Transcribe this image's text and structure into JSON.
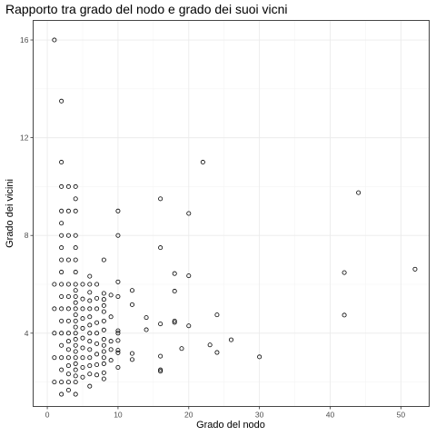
{
  "chart_data": {
    "type": "scatter",
    "title": "Rapporto tra grado del nodo e grado dei suoi vicni",
    "xlabel": "Grado del nodo",
    "ylabel": "Grado dei vicini",
    "xlim": [
      -2,
      54
    ],
    "ylim": [
      1.0,
      16.8
    ],
    "x_ticks": [
      0,
      10,
      20,
      30,
      40,
      50
    ],
    "y_ticks": [
      4,
      8,
      12,
      16
    ],
    "grid": true,
    "marker": "open-circle",
    "points": [
      {
        "x": 1,
        "y": 16
      },
      {
        "x": 2,
        "y": 13.5
      },
      {
        "x": 2,
        "y": 11
      },
      {
        "x": 2,
        "y": 10
      },
      {
        "x": 2,
        "y": 9
      },
      {
        "x": 2,
        "y": 8.5
      },
      {
        "x": 2,
        "y": 8
      },
      {
        "x": 2,
        "y": 7.5
      },
      {
        "x": 2,
        "y": 7
      },
      {
        "x": 2,
        "y": 6.5
      },
      {
        "x": 2,
        "y": 6
      },
      {
        "x": 2,
        "y": 5.5
      },
      {
        "x": 2,
        "y": 5
      },
      {
        "x": 2,
        "y": 4.5
      },
      {
        "x": 2,
        "y": 4
      },
      {
        "x": 2,
        "y": 3.5
      },
      {
        "x": 2,
        "y": 3
      },
      {
        "x": 2,
        "y": 2.5
      },
      {
        "x": 2,
        "y": 2
      },
      {
        "x": 2,
        "y": 1.5
      },
      {
        "x": 1,
        "y": 6
      },
      {
        "x": 1,
        "y": 5
      },
      {
        "x": 1,
        "y": 4
      },
      {
        "x": 1,
        "y": 3
      },
      {
        "x": 1,
        "y": 2
      },
      {
        "x": 3,
        "y": 10
      },
      {
        "x": 3,
        "y": 9
      },
      {
        "x": 3,
        "y": 8
      },
      {
        "x": 3,
        "y": 7
      },
      {
        "x": 3,
        "y": 6
      },
      {
        "x": 3,
        "y": 5.5
      },
      {
        "x": 3,
        "y": 5
      },
      {
        "x": 3,
        "y": 4.5
      },
      {
        "x": 3,
        "y": 4
      },
      {
        "x": 3,
        "y": 3.67
      },
      {
        "x": 3,
        "y": 3.33
      },
      {
        "x": 3,
        "y": 3
      },
      {
        "x": 3,
        "y": 2.67
      },
      {
        "x": 3,
        "y": 2.33
      },
      {
        "x": 3,
        "y": 2
      },
      {
        "x": 3,
        "y": 1.67
      },
      {
        "x": 4,
        "y": 10
      },
      {
        "x": 4,
        "y": 9.5
      },
      {
        "x": 4,
        "y": 9
      },
      {
        "x": 4,
        "y": 8
      },
      {
        "x": 4,
        "y": 7.5
      },
      {
        "x": 4,
        "y": 7
      },
      {
        "x": 4,
        "y": 6.5
      },
      {
        "x": 4,
        "y": 6
      },
      {
        "x": 4,
        "y": 5.75
      },
      {
        "x": 4,
        "y": 5.5
      },
      {
        "x": 4,
        "y": 5.25
      },
      {
        "x": 4,
        "y": 5
      },
      {
        "x": 4,
        "y": 4.75
      },
      {
        "x": 4,
        "y": 4.5
      },
      {
        "x": 4,
        "y": 4.25
      },
      {
        "x": 4,
        "y": 4
      },
      {
        "x": 4,
        "y": 3.75
      },
      {
        "x": 4,
        "y": 3.5
      },
      {
        "x": 4,
        "y": 3.25
      },
      {
        "x": 4,
        "y": 3
      },
      {
        "x": 4,
        "y": 2.75
      },
      {
        "x": 4,
        "y": 2.5
      },
      {
        "x": 4,
        "y": 2.25
      },
      {
        "x": 4,
        "y": 2
      },
      {
        "x": 4,
        "y": 1.5
      },
      {
        "x": 5,
        "y": 6
      },
      {
        "x": 5,
        "y": 5.4
      },
      {
        "x": 5,
        "y": 5
      },
      {
        "x": 5,
        "y": 4.6
      },
      {
        "x": 5,
        "y": 4.2
      },
      {
        "x": 5,
        "y": 3.8
      },
      {
        "x": 5,
        "y": 3.4
      },
      {
        "x": 5,
        "y": 3
      },
      {
        "x": 5,
        "y": 2.6
      },
      {
        "x": 5,
        "y": 2.2
      },
      {
        "x": 6,
        "y": 6.33
      },
      {
        "x": 6,
        "y": 6
      },
      {
        "x": 6,
        "y": 5.67
      },
      {
        "x": 6,
        "y": 5.33
      },
      {
        "x": 6,
        "y": 5
      },
      {
        "x": 6,
        "y": 4.67
      },
      {
        "x": 6,
        "y": 4.33
      },
      {
        "x": 6,
        "y": 4
      },
      {
        "x": 6,
        "y": 3.67
      },
      {
        "x": 6,
        "y": 3.33
      },
      {
        "x": 6,
        "y": 3
      },
      {
        "x": 6,
        "y": 2.67
      },
      {
        "x": 6,
        "y": 2.33
      },
      {
        "x": 6,
        "y": 1.83
      },
      {
        "x": 7,
        "y": 6
      },
      {
        "x": 7,
        "y": 5.43
      },
      {
        "x": 7,
        "y": 5
      },
      {
        "x": 7,
        "y": 4.43
      },
      {
        "x": 7,
        "y": 4
      },
      {
        "x": 7,
        "y": 3.57
      },
      {
        "x": 7,
        "y": 3.14
      },
      {
        "x": 7,
        "y": 2.71
      },
      {
        "x": 7,
        "y": 2.29
      },
      {
        "x": 8,
        "y": 7
      },
      {
        "x": 8,
        "y": 5.63
      },
      {
        "x": 8,
        "y": 5.38
      },
      {
        "x": 8,
        "y": 5.13
      },
      {
        "x": 8,
        "y": 4.88
      },
      {
        "x": 8,
        "y": 4.5
      },
      {
        "x": 8,
        "y": 4.13
      },
      {
        "x": 8,
        "y": 3.75
      },
      {
        "x": 8,
        "y": 3.5
      },
      {
        "x": 8,
        "y": 3.25
      },
      {
        "x": 8,
        "y": 3
      },
      {
        "x": 8,
        "y": 2.75
      },
      {
        "x": 8,
        "y": 2.38
      },
      {
        "x": 8,
        "y": 2.13
      },
      {
        "x": 9,
        "y": 5.56
      },
      {
        "x": 9,
        "y": 4.67
      },
      {
        "x": 9,
        "y": 3.67
      },
      {
        "x": 9,
        "y": 3.33
      },
      {
        "x": 9,
        "y": 2.89
      },
      {
        "x": 10,
        "y": 9
      },
      {
        "x": 10,
        "y": 8
      },
      {
        "x": 10,
        "y": 6.1
      },
      {
        "x": 10,
        "y": 5.5
      },
      {
        "x": 10,
        "y": 4.1
      },
      {
        "x": 10,
        "y": 4
      },
      {
        "x": 10,
        "y": 3.7
      },
      {
        "x": 10,
        "y": 3.3
      },
      {
        "x": 10,
        "y": 3.2
      },
      {
        "x": 10,
        "y": 2.6
      },
      {
        "x": 12,
        "y": 5.75
      },
      {
        "x": 12,
        "y": 5.17
      },
      {
        "x": 12,
        "y": 3.17
      },
      {
        "x": 12,
        "y": 2.92
      },
      {
        "x": 14,
        "y": 4.64
      },
      {
        "x": 14,
        "y": 4.14
      },
      {
        "x": 16,
        "y": 9.5
      },
      {
        "x": 16,
        "y": 7.5
      },
      {
        "x": 16,
        "y": 4.38
      },
      {
        "x": 16,
        "y": 3.06
      },
      {
        "x": 16,
        "y": 2.5
      },
      {
        "x": 16,
        "y": 2.44
      },
      {
        "x": 18,
        "y": 6.44
      },
      {
        "x": 18,
        "y": 5.72
      },
      {
        "x": 18,
        "y": 4.5
      },
      {
        "x": 18,
        "y": 4.44
      },
      {
        "x": 19,
        "y": 3.37
      },
      {
        "x": 20,
        "y": 8.9
      },
      {
        "x": 20,
        "y": 6.35
      },
      {
        "x": 20,
        "y": 4.3
      },
      {
        "x": 22,
        "y": 11
      },
      {
        "x": 23,
        "y": 3.52
      },
      {
        "x": 24,
        "y": 4.75
      },
      {
        "x": 24,
        "y": 3.21
      },
      {
        "x": 26,
        "y": 3.73
      },
      {
        "x": 30,
        "y": 3.03
      },
      {
        "x": 42,
        "y": 6.48
      },
      {
        "x": 42,
        "y": 4.74
      },
      {
        "x": 44,
        "y": 9.75
      },
      {
        "x": 52,
        "y": 6.62
      }
    ]
  }
}
